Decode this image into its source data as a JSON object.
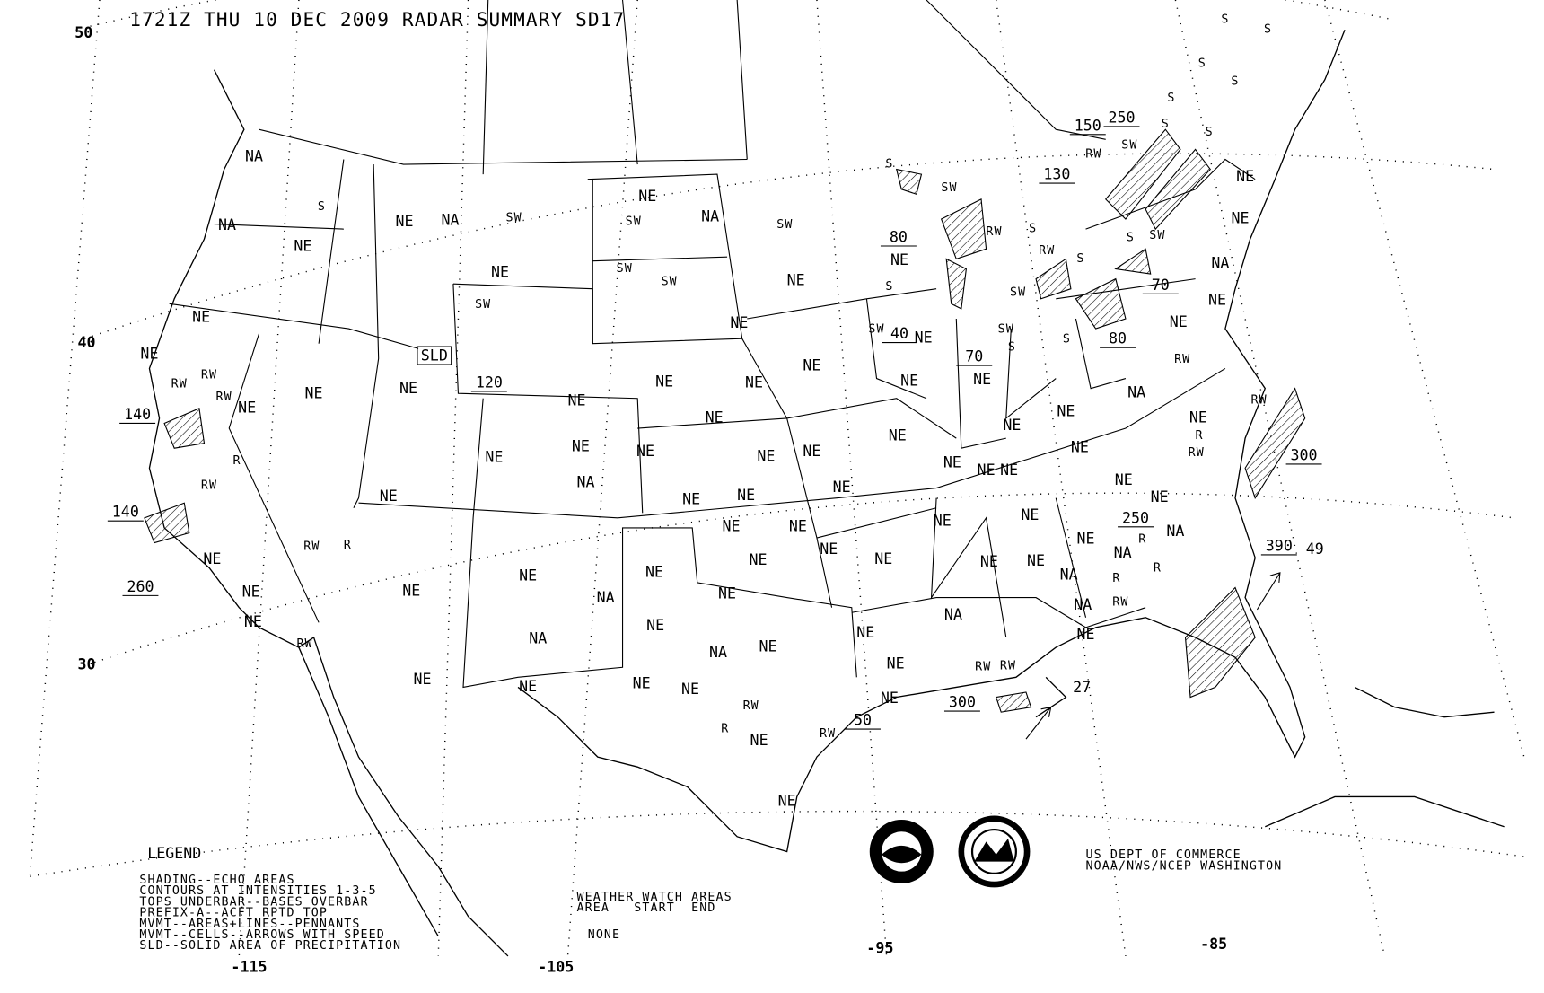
{
  "title": "1721Z THU 10 DEC 2009 RADAR SUMMARY SD17",
  "latitude_labels": [
    "50",
    "40",
    "30"
  ],
  "longitude_labels": [
    "-115",
    "-105",
    "-95",
    "-85"
  ],
  "legend": {
    "heading": "LEGEND",
    "lines": [
      "SHADING--ECHO AREAS",
      "CONTOURS AT INTENSITIES 1-3-5",
      "TOPS UNDERBAR--BASES OVERBAR",
      "PREFIX-A--ACFT RPTD TOP",
      "MVMT--AREAS+LINES--PENNANTS",
      "MVMT--CELLS--ARROWS WITH SPEED",
      "SLD--SOLID AREA OF PRECIPITATION"
    ]
  },
  "watch_areas": {
    "heading": "WEATHER WATCH AREAS",
    "columns": "AREA   START  END",
    "value": "NONE"
  },
  "credit": [
    "US DEPT OF COMMERCE",
    "NOAA/NWS/NCEP WASHINGTON"
  ],
  "logos": [
    "NOAA",
    "NATIONAL WEATHER SERVICE"
  ],
  "echo_labels": [
    "NA",
    "NA",
    "NE",
    "S",
    "NE",
    "NA",
    "SW",
    "NE",
    "SW",
    "NA",
    "NE",
    "SW",
    "SW",
    "SW",
    "S",
    "SW",
    "NE",
    "NE",
    "SW",
    "SLD",
    "120",
    "NE",
    "NE",
    "80",
    "NE",
    "S",
    "RW",
    "RW",
    "RW",
    "NE",
    "NE",
    "NE",
    "NE",
    "NE",
    "NE",
    "NE",
    "SW",
    "40",
    "NE",
    "NE",
    "70",
    "NE",
    "140",
    "R",
    "RW",
    "140",
    "260",
    "NE",
    "NE",
    "NE",
    "NA",
    "NE",
    "NE",
    "NE",
    "NE",
    "NE",
    "NE",
    "NE",
    "NE",
    "NE",
    "NA",
    "NE",
    "NE",
    "R",
    "RW",
    "300",
    "NE",
    "NE",
    "NE",
    "NE",
    "NE",
    "NE",
    "NE",
    "NE",
    "NE",
    "250",
    "NA",
    "R",
    "NA",
    "NE",
    "NE",
    "NE",
    "NE",
    "NE",
    "RW",
    "R",
    "NE",
    "NE",
    "NE",
    "RW",
    "NE",
    "NA",
    "NE",
    "NE",
    "NE",
    "NE",
    "NE",
    "NA",
    "NA",
    "R",
    "R",
    "RW",
    "NE",
    "390",
    "49",
    "NA",
    "NE",
    "NA",
    "NE",
    "NE",
    "NE",
    "NA",
    "RW",
    "RW",
    "NE",
    "NE",
    "NE",
    "NE",
    "RW",
    "R",
    "NE",
    "NE",
    "50",
    "RW",
    "300",
    "27",
    "NE",
    "NE",
    "NE",
    "NA",
    "NE",
    "NE",
    "RW",
    "80",
    "70",
    "SW",
    "S",
    "S",
    "RW",
    "S",
    "RW",
    "SW",
    "S",
    "SW",
    "S",
    "130",
    "150",
    "RW",
    "SW",
    "250",
    "S",
    "S",
    "S",
    "S",
    "S",
    "S",
    "S",
    "RW"
  ]
}
